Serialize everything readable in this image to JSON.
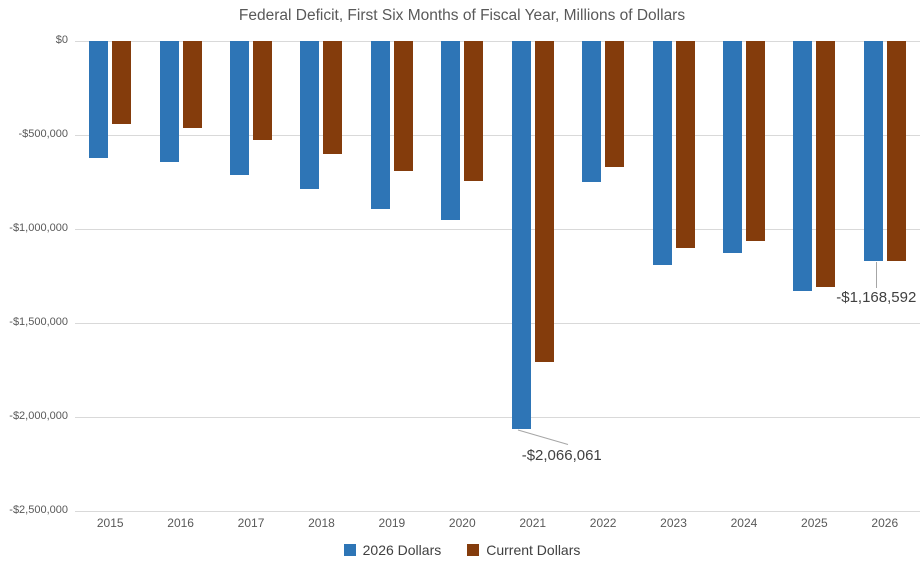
{
  "chart_data": {
    "type": "bar",
    "title": "Federal Deficit, First Six Months of Fiscal Year, Millions of Dollars",
    "xlabel": "",
    "ylabel": "",
    "categories": [
      "2015",
      "2016",
      "2017",
      "2018",
      "2019",
      "2020",
      "2021",
      "2022",
      "2023",
      "2024",
      "2025",
      "2026"
    ],
    "series": [
      {
        "name": "2026 Dollars",
        "color": "#2E75B6",
        "values": [
          -620000,
          -645000,
          -715000,
          -785000,
          -895000,
          -950000,
          -2066061,
          -750000,
          -1190000,
          -1130000,
          -1330000,
          -1168592
        ]
      },
      {
        "name": "Current Dollars",
        "color": "#843C0C",
        "values": [
          -439500,
          -461200,
          -526900,
          -598700,
          -691100,
          -743600,
          -1706000,
          -668300,
          -1101000,
          -1064700,
          -1307000,
          -1168592
        ]
      }
    ],
    "ylim": [
      -2500000,
      0
    ],
    "y_ticks": [
      "$0",
      "-$500,000",
      "-$1,000,000",
      "-$1,500,000",
      "-$2,000,000",
      "-$2,500,000"
    ],
    "grid": "horizontal",
    "legend_position": "bottom",
    "annotations": [
      {
        "text": "-$2,066,061",
        "series": "2026 Dollars",
        "category": "2021",
        "leader": "diagonal"
      },
      {
        "text": "-$1,168,592",
        "series": "2026 Dollars",
        "category": "2026",
        "leader": "vertical"
      }
    ],
    "colors": {
      "background": "#FFFFFF",
      "gridline": "#D9D9D9",
      "axis_text": "#595959",
      "annotation_text": "#404040",
      "leader_line": "#A6A6A6"
    }
  }
}
